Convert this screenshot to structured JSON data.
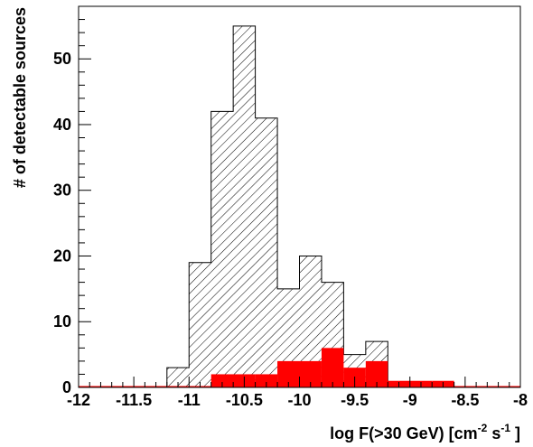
{
  "chart_data": {
    "type": "bar",
    "title": "",
    "xlabel": {
      "prefix": "log F(>30 GeV) [cm",
      "sup1": "-2",
      "middle": " s",
      "sup2": "-1",
      "suffix": " ]"
    },
    "ylabel": "# of detectable sources",
    "xlim": [
      -12,
      -8
    ],
    "ylim": [
      0,
      58
    ],
    "bin_width": 0.2,
    "x_ticks": [
      -12,
      -11.5,
      -11,
      -10.5,
      -10,
      -9.5,
      -9,
      -8.5,
      -8
    ],
    "x_tick_labels": [
      "-12",
      "-11.5",
      "-11",
      "-10.5",
      "-10",
      "-9.5",
      "-9",
      "-8.5",
      "-8"
    ],
    "y_ticks": [
      0,
      10,
      20,
      30,
      40,
      50
    ],
    "y_tick_labels": [
      "0",
      "10",
      "20",
      "30",
      "40",
      "50"
    ],
    "grid": false,
    "series": [
      {
        "style": "hatched",
        "color": "#000000",
        "bins": [
          {
            "x0": -11.2,
            "x1": -11.0,
            "value": 3
          },
          {
            "x0": -11.0,
            "x1": -10.8,
            "value": 19
          },
          {
            "x0": -10.8,
            "x1": -10.6,
            "value": 42
          },
          {
            "x0": -10.6,
            "x1": -10.4,
            "value": 55
          },
          {
            "x0": -10.4,
            "x1": -10.2,
            "value": 41
          },
          {
            "x0": -10.2,
            "x1": -10.0,
            "value": 15
          },
          {
            "x0": -10.0,
            "x1": -9.8,
            "value": 20
          },
          {
            "x0": -9.8,
            "x1": -9.6,
            "value": 16
          },
          {
            "x0": -9.6,
            "x1": -9.4,
            "value": 5
          },
          {
            "x0": -9.4,
            "x1": -9.2,
            "value": 7
          }
        ]
      },
      {
        "style": "filled",
        "color": "#ff0000",
        "bins": [
          {
            "x0": -10.8,
            "x1": -10.4,
            "value": 2
          },
          {
            "x0": -10.4,
            "x1": -10.2,
            "value": 2
          },
          {
            "x0": -10.2,
            "x1": -9.8,
            "value": 4
          },
          {
            "x0": -9.8,
            "x1": -9.6,
            "value": 6
          },
          {
            "x0": -9.6,
            "x1": -9.4,
            "value": 3
          },
          {
            "x0": -9.4,
            "x1": -9.2,
            "value": 4
          },
          {
            "x0": -9.2,
            "x1": -9.0,
            "value": 1
          },
          {
            "x0": -9.0,
            "x1": -8.8,
            "value": 1
          },
          {
            "x0": -8.8,
            "x1": -8.6,
            "value": 1
          }
        ]
      }
    ]
  }
}
